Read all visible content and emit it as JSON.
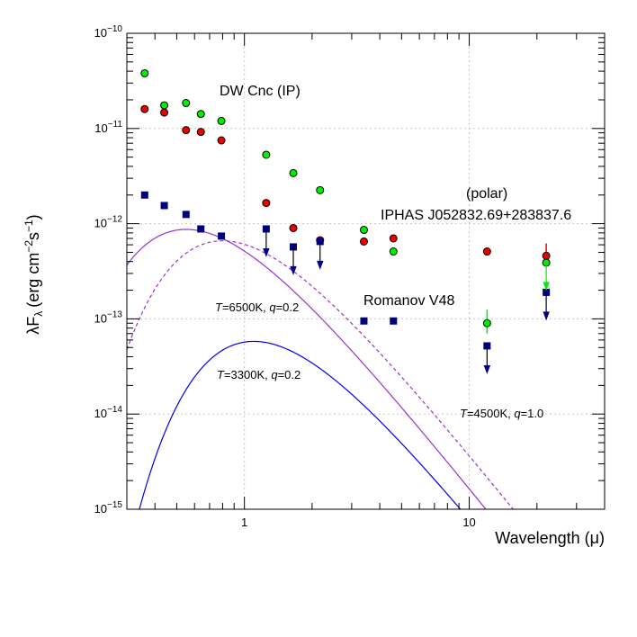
{
  "chart_data": {
    "type": "scatter",
    "x_scale": "log",
    "y_scale": "log",
    "xlim": [
      0.3,
      40
    ],
    "ylim": [
      1e-15,
      1e-10
    ],
    "grid": true,
    "xlabel": "Wavelength (μ)",
    "ylabel_main": "λF",
    "ylabel_sub": "λ",
    "ylabel_units": "(erg cm",
    "ylabel_exp1": "−2",
    "ylabel_s": "s",
    "ylabel_exp2": "−1",
    "ylabel_close": ")",
    "x_ticks": [
      {
        "value": 1,
        "label": "1"
      },
      {
        "value": 10,
        "label": "10"
      }
    ],
    "y_ticks": [
      {
        "value": 1e-10,
        "base": "10",
        "exp": "−10"
      },
      {
        "value": 1e-11,
        "base": "10",
        "exp": "−11"
      },
      {
        "value": 1e-12,
        "base": "10",
        "exp": "−12"
      },
      {
        "value": 1e-13,
        "base": "10",
        "exp": "−13"
      },
      {
        "value": 1e-14,
        "base": "10",
        "exp": "−14"
      },
      {
        "value": 1e-15,
        "base": "10",
        "exp": "−15"
      }
    ],
    "series": [
      {
        "marker": "circle",
        "color": "#00ee00",
        "points": [
          {
            "x": 0.36,
            "y": 3.8e-11
          },
          {
            "x": 0.44,
            "y": 1.75e-11
          },
          {
            "x": 0.55,
            "y": 1.85e-11
          },
          {
            "x": 0.64,
            "y": 1.42e-11
          },
          {
            "x": 0.79,
            "y": 1.2e-11
          },
          {
            "x": 1.25,
            "y": 5.3e-12
          },
          {
            "x": 1.65,
            "y": 3.4e-12
          },
          {
            "x": 2.17,
            "y": 2.25e-12
          },
          {
            "x": 3.4,
            "y": 8.6e-13
          },
          {
            "x": 4.6,
            "y": 5.1e-13
          },
          {
            "x": 12.0,
            "y": 9e-14,
            "err": [
              7e-14,
              1.25e-13
            ]
          },
          {
            "x": 22.0,
            "y": 3.9e-13,
            "upper_limit": true
          }
        ]
      },
      {
        "marker": "circle",
        "color": "#ee0000",
        "points": [
          {
            "x": 0.36,
            "y": 1.6e-11
          },
          {
            "x": 0.44,
            "y": 1.47e-11
          },
          {
            "x": 0.55,
            "y": 9.6e-12
          },
          {
            "x": 0.64,
            "y": 9.2e-12
          },
          {
            "x": 0.79,
            "y": 7.5e-12
          },
          {
            "x": 1.25,
            "y": 1.65e-12
          },
          {
            "x": 1.65,
            "y": 9e-13
          },
          {
            "x": 2.17,
            "y": 6.7e-13
          },
          {
            "x": 3.4,
            "y": 6.5e-13
          },
          {
            "x": 4.6,
            "y": 7e-13
          },
          {
            "x": 12.0,
            "y": 5.1e-13
          },
          {
            "x": 22.0,
            "y": 4.6e-13,
            "err": [
              3.6e-13,
              6.2e-13
            ]
          }
        ]
      },
      {
        "marker": "square",
        "color": "#000080",
        "points": [
          {
            "x": 0.36,
            "y": 2e-12
          },
          {
            "x": 0.44,
            "y": 1.55e-12
          },
          {
            "x": 0.55,
            "y": 1.25e-12
          },
          {
            "x": 0.64,
            "y": 8.8e-13
          },
          {
            "x": 0.79,
            "y": 7.4e-13
          },
          {
            "x": 1.25,
            "y": 8.8e-13,
            "upper_limit": true
          },
          {
            "x": 1.65,
            "y": 5.7e-13,
            "upper_limit": true
          },
          {
            "x": 2.17,
            "y": 6.5e-13,
            "upper_limit": true
          },
          {
            "x": 3.4,
            "y": 9.5e-14
          },
          {
            "x": 4.6,
            "y": 9.5e-14
          },
          {
            "x": 12.0,
            "y": 5.2e-14,
            "upper_limit": true
          },
          {
            "x": 22.0,
            "y": 1.9e-13,
            "upper_limit": true
          }
        ]
      }
    ],
    "curves": [
      {
        "color": "#9933cc",
        "dash": false,
        "peak_x": 0.55,
        "peak_y": 8.7e-13
      },
      {
        "color": "#9933cc",
        "dash": true,
        "peak_x": 0.8,
        "peak_y": 6.6e-13
      },
      {
        "color": "#0000ee",
        "dash": false,
        "peak_x": 1.1,
        "peak_y": 5.8e-14
      }
    ],
    "annotations": {
      "dw_cnc": "DW Cnc (IP)",
      "polar": "(polar)",
      "iphas": "IPHAS J052832.69+283837.6",
      "romanov": "Romanov V48",
      "t6500_T": "T",
      "t6500_mid": "=6500K, ",
      "t6500_q": "q",
      "t6500_end": "=0.2",
      "t3300_T": "T",
      "t3300_mid": "=3300K, ",
      "t3300_q": "q",
      "t3300_end": "=0.2",
      "t4500_T": "T",
      "t4500_mid": "=4500K, ",
      "t4500_q": "q",
      "t4500_end": "=1.0"
    }
  }
}
